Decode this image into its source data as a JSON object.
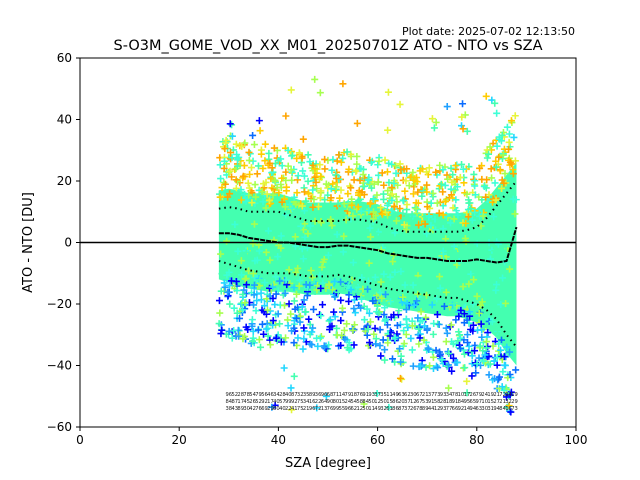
{
  "plot_date": "Plot date: 2025-07-02 12:13:50",
  "colors": {
    "scatter_palette": [
      "#0000ff",
      "#0a6cff",
      "#1ea0ff",
      "#23d7ff",
      "#3cffd6",
      "#44ffb0",
      "#a6ff4f",
      "#e6f53a",
      "#ffcc00",
      "#ffa500"
    ],
    "main_band": "#44ffb0",
    "zero_line": "#000000",
    "mean_line": "#000000"
  },
  "chart_data": {
    "type": "scatter",
    "title": "S-O3M_GOME_VOD_XX_M01_20250701Z ATO - NTO vs SZA",
    "xlabel": "SZA [degree]",
    "ylabel": "ATO - NTO [DU]",
    "xlim": [
      0,
      100
    ],
    "ylim": [
      -60,
      60
    ],
    "xticks": [
      0,
      20,
      40,
      60,
      80,
      100
    ],
    "yticks": [
      -60,
      -40,
      -20,
      0,
      20,
      40,
      60
    ],
    "grid": false,
    "legend": "none",
    "reference_line_y": 0,
    "scatter_x_range": [
      28,
      88
    ],
    "binned_mean": {
      "x": [
        28,
        30,
        32,
        34,
        36,
        38,
        40,
        42,
        44,
        46,
        48,
        50,
        52,
        54,
        56,
        58,
        60,
        62,
        64,
        66,
        68,
        70,
        72,
        74,
        76,
        78,
        80,
        82,
        84,
        86,
        88
      ],
      "y": [
        3,
        3,
        2.5,
        1.5,
        1,
        0.5,
        0,
        0,
        -0.5,
        -1,
        -1.5,
        -1.5,
        -1,
        -1,
        -1.5,
        -2,
        -2.5,
        -3.5,
        -4,
        -4.5,
        -5,
        -5,
        -5.5,
        -6,
        -6,
        -6,
        -5.5,
        -6,
        -6.5,
        -6,
        5
      ]
    },
    "upper_envelope": {
      "x": [
        28,
        30,
        32,
        34,
        36,
        38,
        40,
        42,
        44,
        46,
        48,
        50,
        52,
        54,
        56,
        58,
        60,
        62,
        64,
        66,
        68,
        70,
        72,
        74,
        76,
        78,
        80,
        82,
        84,
        86,
        88
      ],
      "y": [
        11,
        11.5,
        11,
        10,
        10,
        10,
        10,
        9,
        8,
        7,
        7,
        7,
        7,
        7.5,
        7.5,
        7,
        6.5,
        5,
        4,
        3.5,
        3.5,
        3.5,
        3.5,
        3.5,
        3.5,
        4,
        5,
        8,
        12,
        16,
        20
      ]
    },
    "lower_envelope": {
      "x": [
        28,
        30,
        32,
        34,
        36,
        38,
        40,
        42,
        44,
        46,
        48,
        50,
        52,
        54,
        56,
        58,
        60,
        62,
        64,
        66,
        68,
        70,
        72,
        74,
        76,
        78,
        80,
        82,
        84,
        86,
        88
      ],
      "y": [
        -6,
        -7,
        -8,
        -9,
        -9.5,
        -10,
        -10,
        -10,
        -10.5,
        -11,
        -11,
        -11,
        -10.5,
        -11,
        -12,
        -13,
        -14,
        -15,
        -15.5,
        -16,
        -16.5,
        -17,
        -17.5,
        -18,
        -18,
        -19,
        -20,
        -22,
        -25,
        -30,
        -34
      ]
    }
  }
}
